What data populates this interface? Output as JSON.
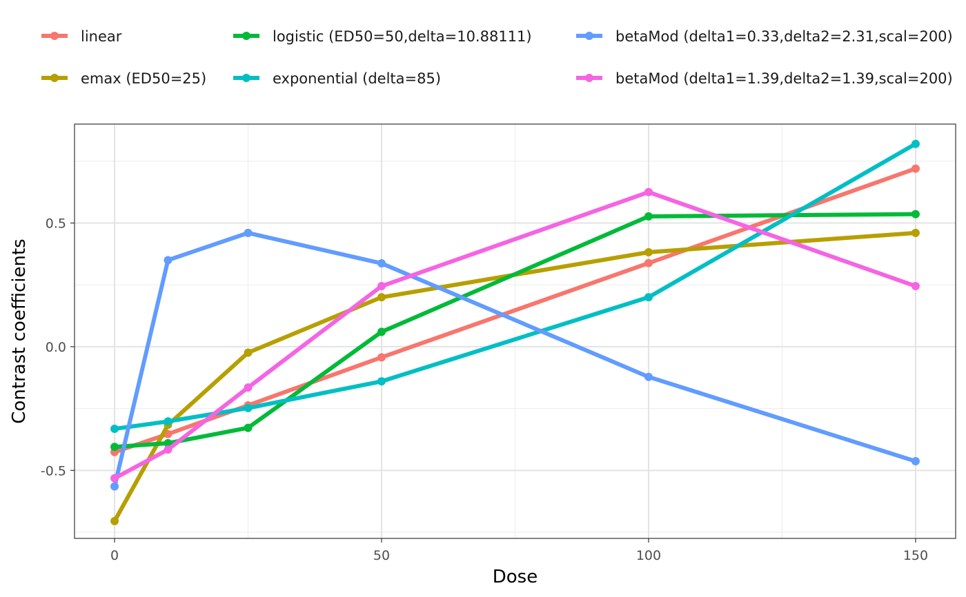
{
  "chart_data": {
    "type": "line",
    "xlabel": "Dose",
    "ylabel": "Contrast coefficients",
    "x": [
      0,
      10,
      25,
      50,
      100,
      150
    ],
    "xlim": [
      -7.5,
      157.5
    ],
    "ylim": [
      -0.775,
      0.9
    ],
    "x_ticks": [
      0,
      50,
      100,
      150
    ],
    "x_tick_labels": [
      "0",
      "50",
      "100",
      "150"
    ],
    "y_ticks": [
      -0.5,
      0.0,
      0.5
    ],
    "y_tick_labels": [
      "-0.5",
      "0.0",
      "0.5"
    ],
    "grid": true,
    "legend_position": "top",
    "series": [
      {
        "name": "linear",
        "color": "#F8766D",
        "values": [
          -0.426,
          -0.353,
          -0.237,
          -0.043,
          0.338,
          0.72
        ]
      },
      {
        "name": "emax (ED50=25)",
        "color": "#B79F00",
        "values": [
          -0.705,
          -0.316,
          -0.024,
          0.2,
          0.382,
          0.46
        ]
      },
      {
        "name": "logistic (ED50=50,delta=10.88111)",
        "color": "#00BA38",
        "values": [
          -0.405,
          -0.39,
          -0.328,
          0.06,
          0.527,
          0.536
        ]
      },
      {
        "name": "exponential (delta=85)",
        "color": "#00BFC4",
        "values": [
          -0.332,
          -0.302,
          -0.248,
          -0.14,
          0.2,
          0.82
        ]
      },
      {
        "name": "betaMod (delta1=0.33,delta2=2.31,scal=200)",
        "color": "#619CFF",
        "values": [
          -0.565,
          0.35,
          0.46,
          0.337,
          -0.122,
          -0.463
        ]
      },
      {
        "name": "betaMod (delta1=1.39,delta2=1.39,scal=200)",
        "color": "#F564E3",
        "values": [
          -0.532,
          -0.416,
          -0.165,
          0.245,
          0.625,
          0.245
        ]
      }
    ]
  }
}
